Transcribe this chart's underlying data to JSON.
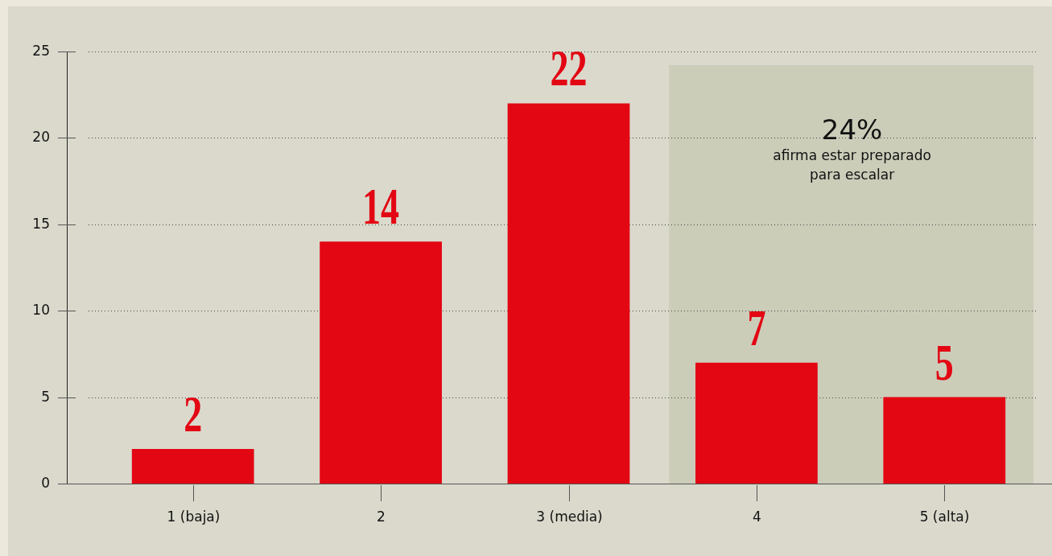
{
  "chart_data": {
    "type": "bar",
    "categories": [
      "1 (baja)",
      "2",
      "3 (media)",
      "4",
      "5 (alta)"
    ],
    "values": [
      2,
      14,
      22,
      7,
      5
    ],
    "color": "#e30613",
    "ylim": [
      0,
      25
    ],
    "yticks": [
      0,
      5,
      10,
      15,
      20,
      25
    ],
    "grid": "y",
    "legend": false,
    "data_labels": true,
    "bands": [
      {
        "axis": "x",
        "from": "4",
        "to": "5 (alta)",
        "label": "24%",
        "color": "#cbcdb9"
      }
    ],
    "annotations": [
      "afirma estar preparado para escalar"
    ]
  }
}
